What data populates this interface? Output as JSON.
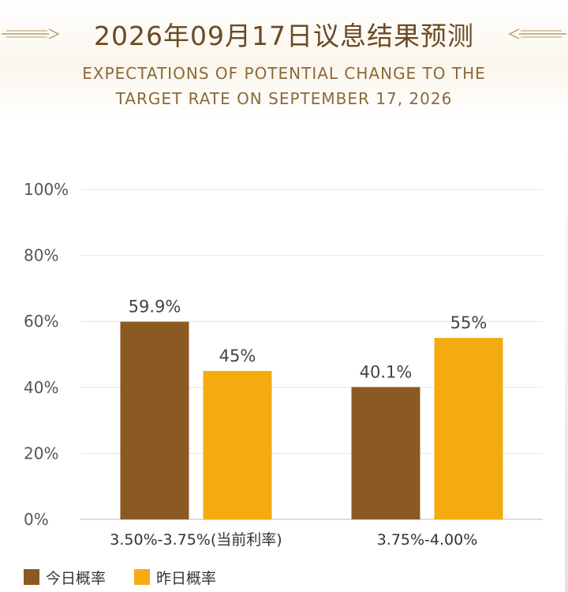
{
  "header": {
    "title": "2026年09月17日议息结果预测",
    "subtitle_line1": "EXPECTATIONS OF POTENTIAL CHANGE TO THE",
    "subtitle_line2": "TARGET RATE ON SEPTEMBER 17, 2026"
  },
  "colors": {
    "today": "#8b5a22",
    "yesterday": "#f5ab10",
    "accent": "#6b4a22",
    "grid": "#e6e6e6"
  },
  "chart_data": {
    "type": "bar",
    "title": "2026年09月17日议息结果预测",
    "subtitle": "EXPECTATIONS OF POTENTIAL CHANGE TO THE TARGET RATE ON SEPTEMBER 17, 2026",
    "categories": [
      "3.50%-3.75%(当前利率)",
      "3.75%-4.00%"
    ],
    "series": [
      {
        "name": "今日概率",
        "values": [
          59.9,
          40.1
        ],
        "labels": [
          "59.9%",
          "40.1%"
        ],
        "color": "#8b5a22"
      },
      {
        "name": "昨日概率",
        "values": [
          45,
          55
        ],
        "labels": [
          "45%",
          "55%"
        ],
        "color": "#f5ab10"
      }
    ],
    "ylim": [
      0,
      100
    ],
    "yticks": [
      0,
      20,
      40,
      60,
      80,
      100
    ],
    "ytick_labels": [
      "0%",
      "20%",
      "40%",
      "60%",
      "80%",
      "100%"
    ],
    "xlabel": "",
    "ylabel": "",
    "grid": true,
    "legend_position": "bottom-left"
  }
}
